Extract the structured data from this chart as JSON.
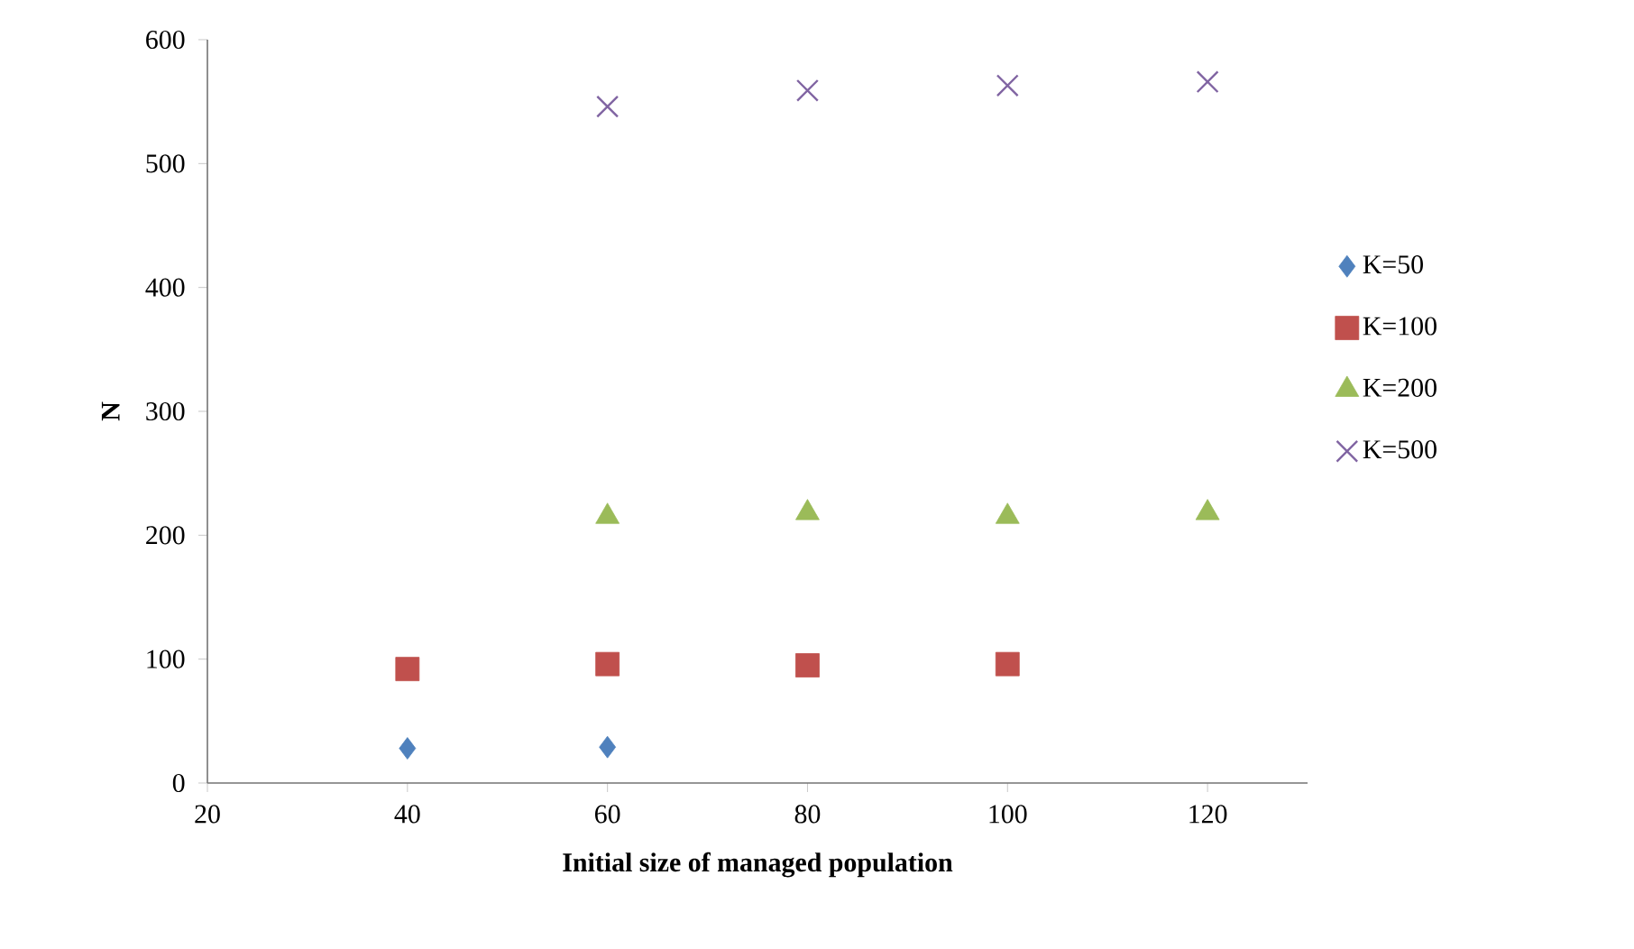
{
  "chart_data": {
    "type": "scatter",
    "xlabel": "Initial size of managed population",
    "ylabel": "N",
    "xlim": [
      20,
      130
    ],
    "xticks": [
      20,
      40,
      60,
      80,
      100,
      120
    ],
    "ylim": [
      0,
      600
    ],
    "yticks": [
      0,
      100,
      200,
      300,
      400,
      500,
      600
    ],
    "grid": false,
    "legend": "right",
    "series": [
      {
        "name": "K=50",
        "color": "#4f81bd",
        "marker": "diamond",
        "x": [
          40,
          60
        ],
        "values": [
          28,
          29
        ]
      },
      {
        "name": "K=100",
        "color": "#c0504d",
        "marker": "square",
        "x": [
          40,
          60,
          80,
          100
        ],
        "values": [
          92,
          96,
          95,
          96
        ]
      },
      {
        "name": "K=200",
        "color": "#9bbb59",
        "marker": "triangle",
        "x": [
          60,
          80,
          100,
          120
        ],
        "values": [
          215,
          218,
          215,
          218
        ]
      },
      {
        "name": "K=500",
        "color": "#8064a2",
        "marker": "cross",
        "x": [
          60,
          80,
          100,
          120
        ],
        "values": [
          546,
          559,
          563,
          566
        ]
      }
    ]
  }
}
